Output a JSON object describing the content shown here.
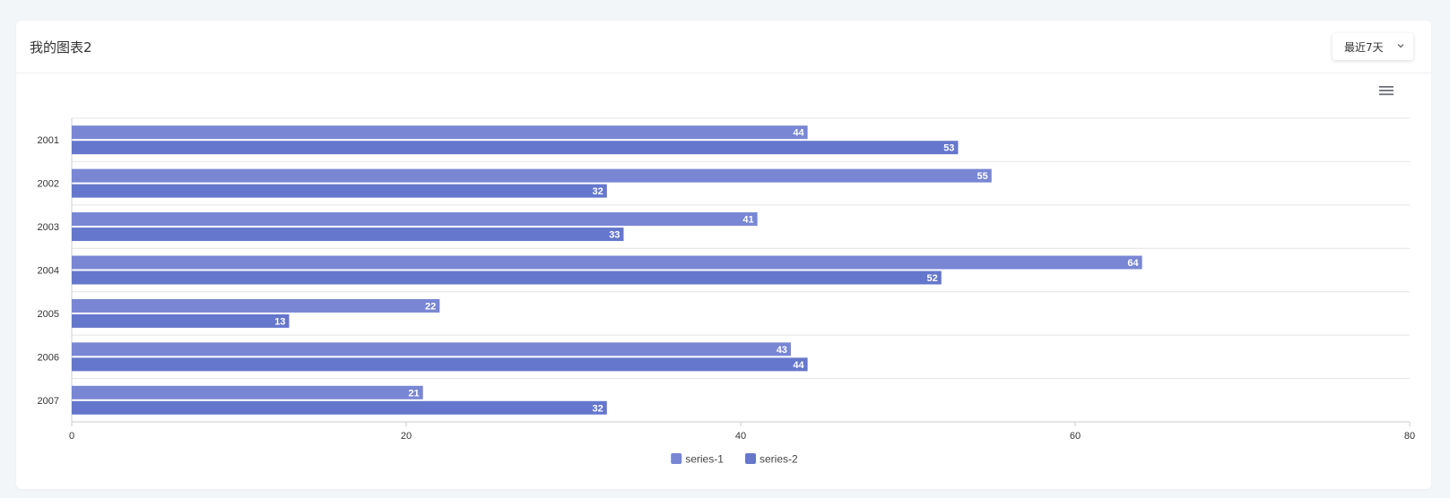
{
  "card": {
    "title": "我的图表2"
  },
  "period_select": {
    "selected": "最近7天"
  },
  "toolbar": {
    "menu_icon": "hamburger-menu-icon"
  },
  "colors": {
    "series-1": "#7886d4",
    "series-2": "#6577cc",
    "grid": "#e2e4e8",
    "axis": "#c8ccd2"
  },
  "chart_data": {
    "type": "bar",
    "orientation": "horizontal",
    "categories": [
      "2001",
      "2002",
      "2003",
      "2004",
      "2005",
      "2006",
      "2007"
    ],
    "series": [
      {
        "name": "series-1",
        "values": [
          44,
          55,
          41,
          64,
          22,
          43,
          21
        ]
      },
      {
        "name": "series-2",
        "values": [
          53,
          32,
          33,
          52,
          13,
          44,
          32
        ]
      }
    ],
    "xlim": [
      0,
      80
    ],
    "xticks": [
      0,
      20,
      40,
      60,
      80
    ],
    "data_labels": true,
    "legend": "bottom-center",
    "grid": "horizontal"
  }
}
